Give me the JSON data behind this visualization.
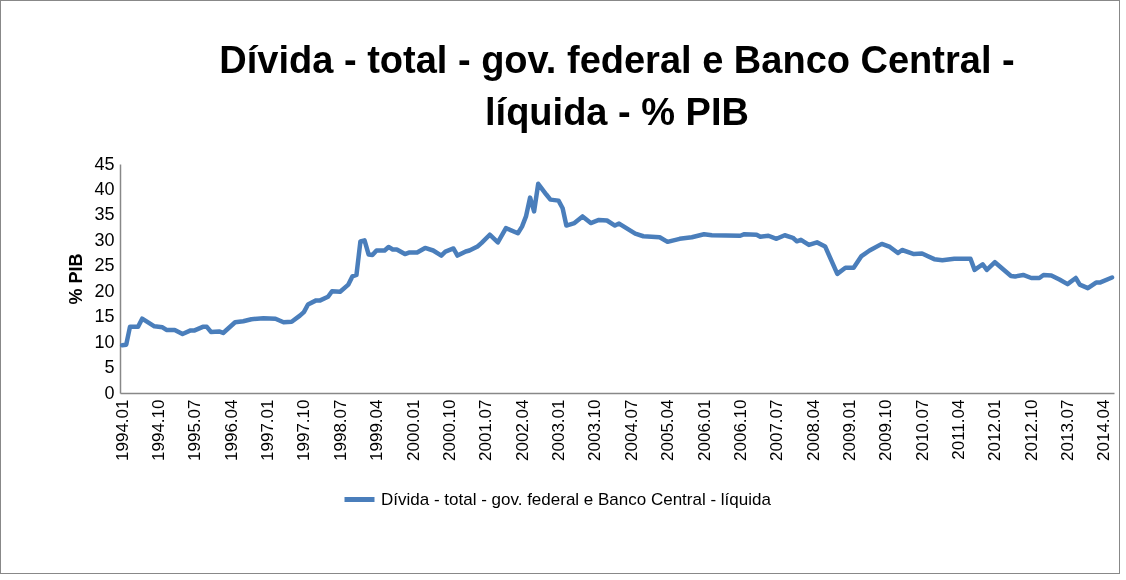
{
  "chart_data": {
    "type": "line",
    "title": "Dívida - total - gov. federal e Banco Central - líquida - % PIB",
    "ylabel": "% PIB",
    "x": [
      "1994-01",
      "1994-02",
      "1994-03",
      "1994-05",
      "1994-06",
      "1994-09",
      "1994-11",
      "1994-12",
      "1995-02",
      "1995-04",
      "1995-06",
      "1995-07",
      "1995-09",
      "1995-10",
      "1995-11",
      "1996-01",
      "1996-02",
      "1996-05",
      "1996-07",
      "1996-09",
      "1996-12",
      "1997-03",
      "1997-05",
      "1997-07",
      "1997-09",
      "1997-10",
      "1997-11",
      "1998-01",
      "1998-02",
      "1998-04",
      "1998-05",
      "1998-07",
      "1998-09",
      "1998-10",
      "1998-11",
      "1998-12",
      "1999-01",
      "1999-02",
      "1999-03",
      "1999-04",
      "1999-06",
      "1999-07",
      "1999-08",
      "1999-09",
      "1999-11",
      "1999-12",
      "2000-02",
      "2000-04",
      "2000-06",
      "2000-08",
      "2000-09",
      "2000-11",
      "2000-12",
      "2001-02",
      "2001-03",
      "2001-05",
      "2001-06",
      "2001-08",
      "2001-10",
      "2001-12",
      "2002-03",
      "2002-04",
      "2002-05",
      "2002-06",
      "2002-07",
      "2002-08",
      "2002-10",
      "2002-11",
      "2003-01",
      "2003-02",
      "2003-03",
      "2003-05",
      "2003-07",
      "2003-09",
      "2003-11",
      "2004-01",
      "2004-03",
      "2004-04",
      "2004-08",
      "2004-10",
      "2005-02",
      "2005-04",
      "2005-07",
      "2005-10",
      "2006-01",
      "2006-03",
      "2006-10",
      "2006-11",
      "2007-02",
      "2007-03",
      "2007-05",
      "2007-07",
      "2007-09",
      "2007-11",
      "2007-12",
      "2008-01",
      "2008-03",
      "2008-05",
      "2008-07",
      "2008-10",
      "2008-12",
      "2009-02",
      "2009-04",
      "2009-06",
      "2009-09",
      "2009-11",
      "2010-01",
      "2010-02",
      "2010-05",
      "2010-07",
      "2010-10",
      "2010-12",
      "2011-03",
      "2011-07",
      "2011-08",
      "2011-10",
      "2011-11",
      "2012-01",
      "2012-05",
      "2012-06",
      "2012-08",
      "2012-10",
      "2012-12",
      "2013-01",
      "2013-03",
      "2013-05",
      "2013-07",
      "2013-09",
      "2013-10",
      "2013-12",
      "2014-02",
      "2014-03",
      "2014-06"
    ],
    "series": [
      {
        "name": "Dívida - total - gov. federal e Banco Central - líquida",
        "color": "#4a7ebb",
        "values": [
          9.4,
          9.5,
          13.0,
          13.0,
          14.6,
          13.1,
          12.9,
          12.4,
          12.4,
          11.6,
          12.3,
          12.3,
          13.0,
          13.0,
          12.0,
          12.1,
          11.8,
          13.9,
          14.1,
          14.5,
          14.7,
          14.6,
          13.9,
          14.0,
          15.2,
          15.9,
          17.4,
          18.2,
          18.2,
          18.9,
          20.0,
          19.9,
          21.3,
          22.9,
          23.2,
          29.8,
          30.0,
          27.2,
          27.1,
          28.0,
          28.0,
          28.7,
          28.2,
          28.2,
          27.3,
          27.6,
          27.6,
          28.5,
          28.0,
          27.0,
          27.8,
          28.4,
          27.0,
          27.8,
          28.0,
          28.8,
          29.5,
          31.1,
          29.6,
          32.4,
          31.4,
          32.7,
          34.7,
          38.4,
          35.7,
          41.1,
          39.0,
          38.0,
          37.8,
          36.3,
          32.9,
          33.4,
          34.7,
          33.4,
          34.0,
          33.9,
          32.9,
          33.3,
          31.3,
          30.8,
          30.6,
          29.7,
          30.3,
          30.6,
          31.2,
          31.0,
          30.9,
          31.2,
          31.1,
          30.7,
          30.9,
          30.3,
          31.0,
          30.5,
          29.8,
          30.1,
          29.1,
          29.6,
          28.8,
          23.4,
          24.6,
          24.6,
          26.9,
          28.0,
          29.3,
          28.7,
          27.5,
          28.1,
          27.3,
          27.4,
          26.3,
          26.1,
          26.4,
          26.4,
          24.2,
          25.3,
          24.2,
          25.7,
          23.0,
          22.9,
          23.2,
          22.6,
          22.6,
          23.2,
          23.1,
          22.3,
          21.4,
          22.6,
          21.3,
          20.6,
          21.7,
          21.7,
          22.7
        ]
      }
    ],
    "xlim": [
      "1993-12-16",
      "2014-06-16"
    ],
    "xticks": [
      {
        "value": "1994-01",
        "label": "1994.01"
      },
      {
        "value": "1994-10",
        "label": "1994.10"
      },
      {
        "value": "1995-07",
        "label": "1995.07"
      },
      {
        "value": "1996-04",
        "label": "1996.04"
      },
      {
        "value": "1997-01",
        "label": "1997.01"
      },
      {
        "value": "1997-10",
        "label": "1997.10"
      },
      {
        "value": "1998-07",
        "label": "1998.07"
      },
      {
        "value": "1999-04",
        "label": "1999.04"
      },
      {
        "value": "2000-01",
        "label": "2000.01"
      },
      {
        "value": "2000-10",
        "label": "2000.10"
      },
      {
        "value": "2001-07",
        "label": "2001.07"
      },
      {
        "value": "2002-04",
        "label": "2002.04"
      },
      {
        "value": "2003-01",
        "label": "2003.01"
      },
      {
        "value": "2003-10",
        "label": "2003.10"
      },
      {
        "value": "2004-07",
        "label": "2004.07"
      },
      {
        "value": "2005-04",
        "label": "2005.04"
      },
      {
        "value": "2006-01",
        "label": "2006.01"
      },
      {
        "value": "2006-10",
        "label": "2006.10"
      },
      {
        "value": "2007-07",
        "label": "2007.07"
      },
      {
        "value": "2008-04",
        "label": "2008.04"
      },
      {
        "value": "2009-01",
        "label": "2009.01"
      },
      {
        "value": "2009-10",
        "label": "2009.10"
      },
      {
        "value": "2010-07",
        "label": "2010.07"
      },
      {
        "value": "2011-04",
        "label": "2011.04"
      },
      {
        "value": "2012-01",
        "label": "2012.01"
      },
      {
        "value": "2012-10",
        "label": "2012.10"
      },
      {
        "value": "2013-07",
        "label": "2013.07"
      },
      {
        "value": "2014-04",
        "label": "2014.04"
      }
    ],
    "ylim": [
      0,
      45
    ],
    "yticks": [
      0,
      5,
      10,
      15,
      20,
      25,
      30,
      35,
      40,
      45
    ],
    "legend": "bottom",
    "line_style": "solid"
  }
}
